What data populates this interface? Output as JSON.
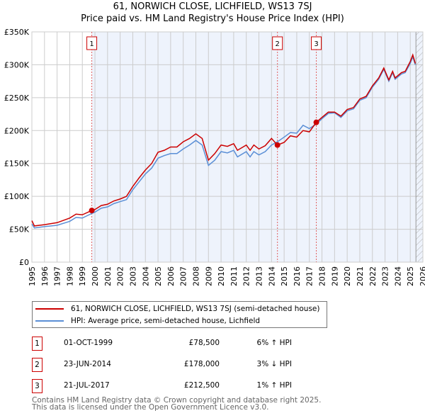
{
  "title": "61, NORWICH CLOSE, LICHFIELD, WS13 7SJ",
  "subtitle": "Price paid vs. HM Land Registry's House Price Index (HPI)",
  "chart_data": {
    "type": "line",
    "title": "61, NORWICH CLOSE, LICHFIELD, WS13 7SJ — Price paid vs. HM Land Registry's House Price Index (HPI)",
    "xlim": [
      1995,
      2026
    ],
    "ylim": [
      0,
      350000
    ],
    "x_ticks": [
      "1995",
      "1996",
      "1997",
      "1998",
      "1999",
      "2000",
      "2001",
      "2002",
      "2003",
      "2004",
      "2005",
      "2006",
      "2007",
      "2008",
      "2009",
      "2010",
      "2011",
      "2012",
      "2013",
      "2014",
      "2015",
      "2016",
      "2017",
      "2018",
      "2019",
      "2020",
      "2021",
      "2022",
      "2023",
      "2024",
      "2025",
      "2026"
    ],
    "y_ticks": [
      {
        "v": 0,
        "label": "£0"
      },
      {
        "v": 50000,
        "label": "£50K"
      },
      {
        "v": 100000,
        "label": "£100K"
      },
      {
        "v": 150000,
        "label": "£150K"
      },
      {
        "v": 200000,
        "label": "£200K"
      },
      {
        "v": 250000,
        "label": "£250K"
      },
      {
        "v": 300000,
        "label": "£300K"
      },
      {
        "v": 350000,
        "label": "£350K"
      }
    ],
    "grid": true,
    "series": [
      {
        "name": "61, NORWICH CLOSE, LICHFIELD, WS13 7SJ (semi-detached house)",
        "color": "#cc0000",
        "x": [
          1995,
          1995.2,
          1996,
          1997,
          1998,
          1998.5,
          1999,
          1999.75,
          2000,
          2000.5,
          2001,
          2001.5,
          2002,
          2002.5,
          2003,
          2003.5,
          2004,
          2004.5,
          2005,
          2005.5,
          2006,
          2006.5,
          2007,
          2007.5,
          2008,
          2008.5,
          2009,
          2009.5,
          2010,
          2010.5,
          2011,
          2011.3,
          2012,
          2012.3,
          2012.6,
          2013,
          2013.5,
          2014,
          2014.47,
          2015,
          2015.5,
          2016,
          2016.5,
          2017,
          2017.55,
          2018,
          2018.5,
          2019,
          2019.5,
          2020,
          2020.5,
          2021,
          2021.5,
          2022,
          2022.5,
          2022.9,
          2023.3,
          2023.6,
          2023.8,
          2024.3,
          2024.6,
          2025,
          2025.2,
          2025.4
        ],
        "y": [
          63000,
          55000,
          57000,
          60000,
          67000,
          73000,
          72000,
          78500,
          80000,
          86000,
          88000,
          93000,
          96000,
          100000,
          115000,
          128000,
          140000,
          150000,
          167000,
          170000,
          175000,
          175000,
          183000,
          188000,
          195000,
          188000,
          155000,
          165000,
          178000,
          176000,
          180000,
          170000,
          178000,
          170000,
          178000,
          172000,
          177000,
          188000,
          178000,
          182000,
          192000,
          190000,
          200000,
          198000,
          212500,
          220000,
          228000,
          228000,
          222000,
          232000,
          235000,
          248000,
          252000,
          268000,
          280000,
          295000,
          277000,
          290000,
          280000,
          288000,
          290000,
          305000,
          315000,
          302000
        ]
      },
      {
        "name": "HPI: Average price, semi-detached house, Lichfield",
        "color": "#5b8fd6",
        "x": [
          1995,
          1995.2,
          1996,
          1997,
          1998,
          1998.5,
          1999,
          1999.75,
          2000,
          2000.5,
          2001,
          2001.5,
          2002,
          2002.5,
          2003,
          2003.5,
          2004,
          2004.5,
          2005,
          2005.5,
          2006,
          2006.5,
          2007,
          2007.5,
          2008,
          2008.5,
          2009,
          2009.5,
          2010,
          2010.5,
          2011,
          2011.3,
          2012,
          2012.3,
          2012.6,
          2013,
          2013.5,
          2014,
          2014.47,
          2015,
          2015.5,
          2016,
          2016.5,
          2017,
          2017.55,
          2018,
          2018.5,
          2019,
          2019.5,
          2020,
          2020.5,
          2021,
          2021.5,
          2022,
          2022.5,
          2022.9,
          2023.3,
          2023.6,
          2023.8,
          2024.3,
          2024.6,
          2025,
          2025.2,
          2025.4
        ],
        "y": [
          58000,
          52000,
          54000,
          56000,
          62000,
          68000,
          67000,
          74000,
          76000,
          82000,
          84000,
          89000,
          92000,
          95000,
          110000,
          122000,
          134000,
          143000,
          158000,
          162000,
          165000,
          165000,
          172000,
          178000,
          185000,
          178000,
          147000,
          155000,
          168000,
          166000,
          170000,
          160000,
          168000,
          160000,
          168000,
          163000,
          168000,
          178000,
          183000,
          190000,
          197000,
          196000,
          208000,
          203000,
          210000,
          218000,
          226000,
          227000,
          220000,
          230000,
          233000,
          246000,
          250000,
          266000,
          278000,
          293000,
          275000,
          288000,
          278000,
          286000,
          288000,
          302000,
          312000,
          300000
        ]
      }
    ],
    "sales": [
      {
        "n": "1",
        "x": 1999.75,
        "y": 78500
      },
      {
        "n": "2",
        "x": 2014.47,
        "y": 178000
      },
      {
        "n": "3",
        "x": 2017.55,
        "y": 212500
      }
    ],
    "hatched_from": 2025.45
  },
  "legend": {
    "property": "61, NORWICH CLOSE, LICHFIELD, WS13 7SJ (semi-detached house)",
    "hpi": "HPI: Average price, semi-detached house, Lichfield"
  },
  "transactions": [
    {
      "n": "1",
      "date": "01-OCT-1999",
      "price": "£78,500",
      "hpi": "6% ↑ HPI"
    },
    {
      "n": "2",
      "date": "23-JUN-2014",
      "price": "£178,000",
      "hpi": "3% ↓ HPI"
    },
    {
      "n": "3",
      "date": "21-JUL-2017",
      "price": "£212,500",
      "hpi": "1% ↑ HPI"
    }
  ],
  "footer": {
    "line1": "Contains HM Land Registry data © Crown copyright and database right 2025.",
    "line2": "This data is licensed under the Open Government Licence v3.0."
  }
}
